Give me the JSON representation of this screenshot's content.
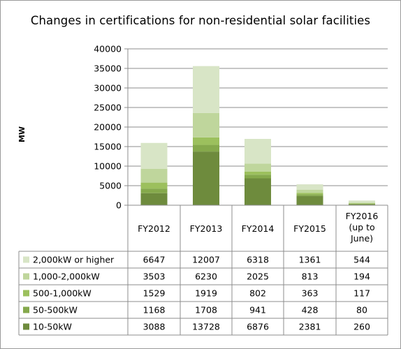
{
  "chart_data": {
    "type": "bar",
    "stacked": true,
    "title": "Changes in certifications for non-residential solar facilities",
    "ylabel": "MW",
    "xlabel": "",
    "ylim": [
      0,
      40000
    ],
    "yticks": [
      "0",
      "5000",
      "10000",
      "15000",
      "20000",
      "25000",
      "30000",
      "35000",
      "40000"
    ],
    "grid": true,
    "categories": [
      [
        "FY2012"
      ],
      [
        "FY2013"
      ],
      [
        "FY2014"
      ],
      [
        "FY2015"
      ],
      [
        "FY2016",
        "(up to",
        "June)"
      ]
    ],
    "series": [
      {
        "name": "10-50kW",
        "color": "#6e8b3d",
        "values": [
          3088,
          13728,
          6876,
          2381,
          260
        ]
      },
      {
        "name": "50-500kW",
        "color": "#85a94c",
        "values": [
          1168,
          1708,
          941,
          428,
          80
        ]
      },
      {
        "name": "500-1,000kW",
        "color": "#9cc05d",
        "values": [
          1529,
          1919,
          802,
          363,
          117
        ]
      },
      {
        "name": "1,000-2,000kW",
        "color": "#bfd69c",
        "values": [
          3503,
          6230,
          2025,
          813,
          194
        ]
      },
      {
        "name": "2,000kW or higher",
        "color": "#d8e5c6",
        "values": [
          6647,
          12007,
          6318,
          1361,
          544
        ]
      }
    ],
    "table_row_order": [
      4,
      3,
      2,
      1,
      0
    ]
  }
}
